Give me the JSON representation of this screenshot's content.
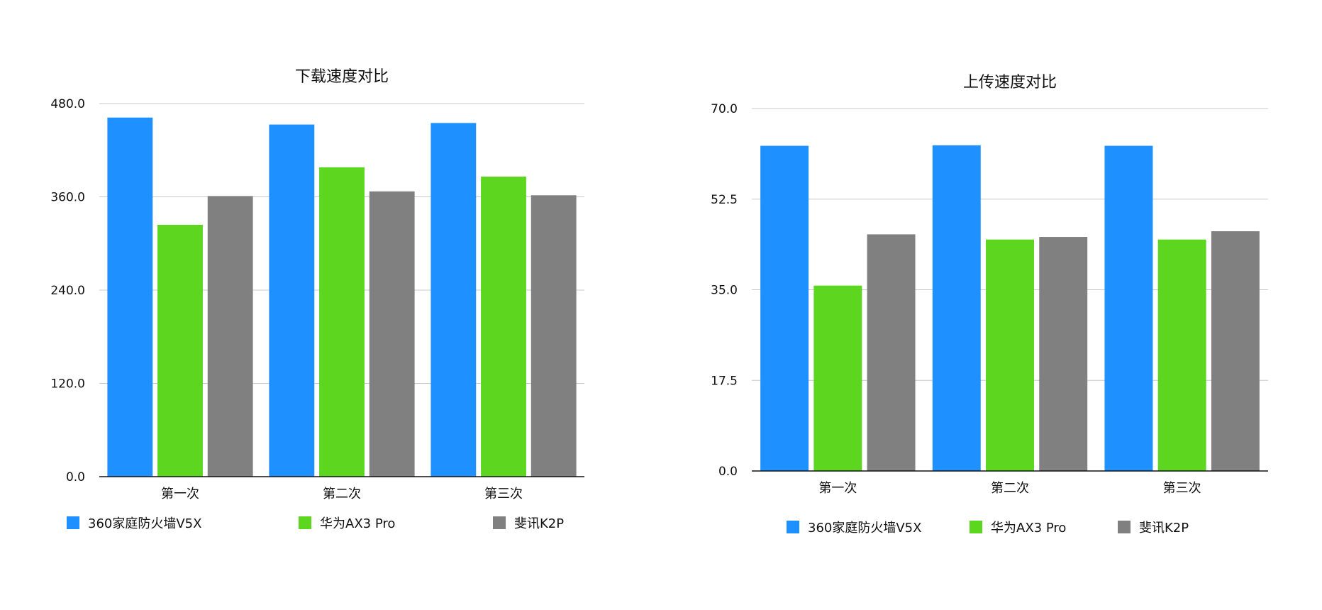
{
  "chart_data": [
    {
      "type": "bar",
      "title": "下载速度对比",
      "categories": [
        "第一次",
        "第二次",
        "第三次"
      ],
      "ylim": [
        0,
        480
      ],
      "yticks": [
        "0.0",
        "120.0",
        "240.0",
        "360.0",
        "480.0"
      ],
      "series": [
        {
          "name": "360家庭防火墙V5X",
          "color": "#1e90ff",
          "values": [
            462,
            453,
            455
          ]
        },
        {
          "name": "华为AX3 Pro",
          "color": "#5cd61e",
          "values": [
            324,
            398,
            386
          ]
        },
        {
          "name": "斐讯K2P",
          "color": "#808080",
          "values": [
            361,
            367,
            362
          ]
        }
      ],
      "grid": true,
      "legend": "bottom"
    },
    {
      "type": "bar",
      "title": "上传速度对比",
      "categories": [
        "第一次",
        "第二次",
        "第三次"
      ],
      "ylim": [
        0,
        70
      ],
      "yticks": [
        "0.0",
        "17.5",
        "35.0",
        "52.5",
        "70.0"
      ],
      "series": [
        {
          "name": "360家庭防火墙V5X",
          "color": "#1e90ff",
          "values": [
            62.8,
            62.9,
            62.8
          ]
        },
        {
          "name": "华为AX3 Pro",
          "color": "#5cd61e",
          "values": [
            35.8,
            44.7,
            44.7
          ]
        },
        {
          "name": "斐讯K2P",
          "color": "#808080",
          "values": [
            45.7,
            45.2,
            46.3
          ]
        }
      ],
      "grid": true,
      "legend": "bottom"
    }
  ]
}
